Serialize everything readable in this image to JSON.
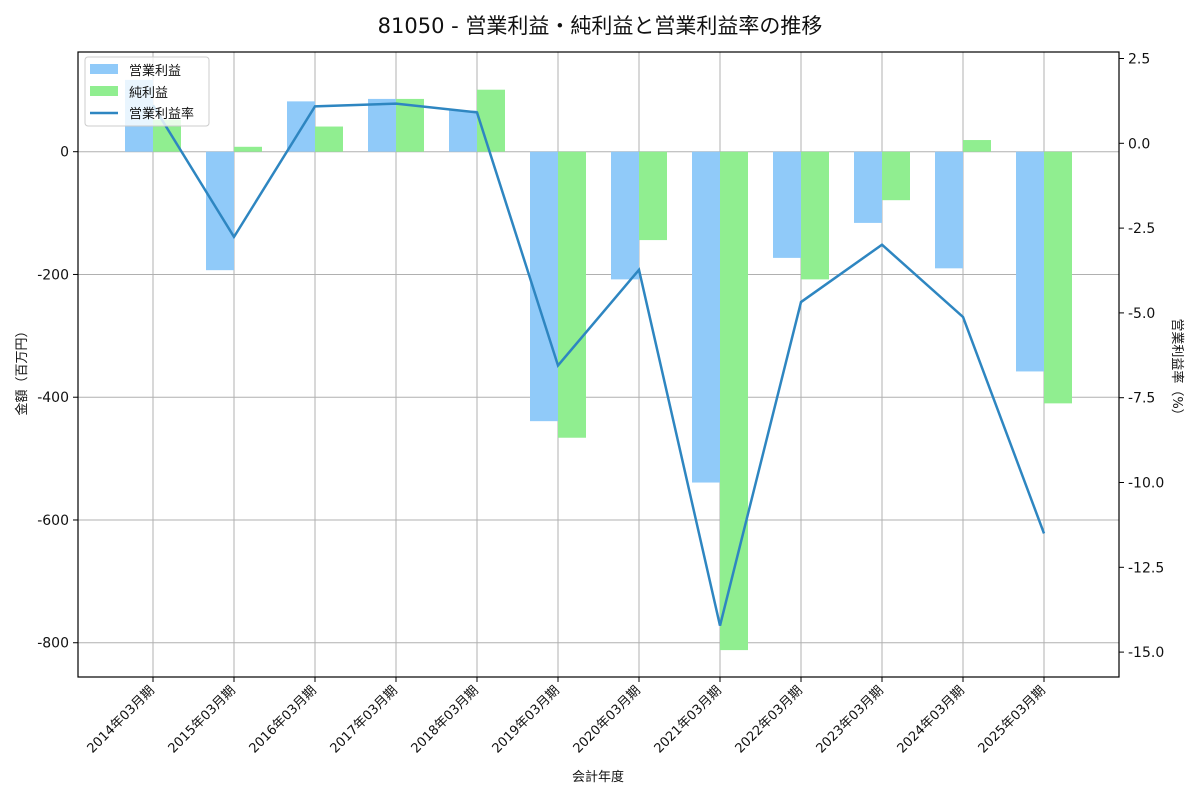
{
  "chart_data": {
    "type": "bar",
    "title": "81050 - 営業利益・純利益と営業利益率の推移",
    "xlabel": "会計年度",
    "ylabel": "金額（百万円）",
    "y2label": "営業利益率（%）",
    "categories": [
      "2014年03月期",
      "2015年03月期",
      "2016年03月期",
      "2017年03月期",
      "2018年03月期",
      "2019年03月期",
      "2020年03月期",
      "2021年03月期",
      "2022年03月期",
      "2023年03月期",
      "2024年03月期",
      "2025年03月期"
    ],
    "series": [
      {
        "name": "営業利益",
        "type": "bar",
        "axis": "left",
        "color": "#90caf9",
        "values": [
          117,
          -193,
          82,
          86,
          67,
          -439,
          -208,
          -539,
          -173,
          -116,
          -190,
          -358
        ]
      },
      {
        "name": "純利益",
        "type": "bar",
        "axis": "left",
        "color": "#90ee90",
        "values": [
          52,
          8,
          41,
          86,
          101,
          -466,
          -144,
          -812,
          -208,
          -79,
          19,
          -410
        ]
      },
      {
        "name": "営業利益率",
        "type": "line",
        "axis": "right",
        "color": "#2e86c1",
        "values": [
          1.12,
          -2.76,
          1.09,
          1.17,
          0.91,
          -6.55,
          -3.73,
          -14.22,
          -4.68,
          -2.99,
          -5.12,
          -11.5
        ]
      }
    ],
    "ylim": [
      -855,
      163
    ],
    "y2lim": [
      -15.7,
      2.6
    ],
    "yticks": [
      0,
      -200,
      -400,
      -600,
      -800
    ],
    "ytick_labels": [
      "0",
      "-200",
      "-400",
      "-600",
      "-800"
    ],
    "y2ticks": [
      2.5,
      0.0,
      -2.5,
      -5.0,
      -7.5,
      -10.0,
      -12.5,
      -15.0
    ],
    "y2tick_labels": [
      "2.5",
      "0.0",
      "-2.5",
      "-5.0",
      "-7.5",
      "-10.0",
      "-12.5",
      "-15.0"
    ],
    "grid": true,
    "legend_position": "upper left"
  }
}
